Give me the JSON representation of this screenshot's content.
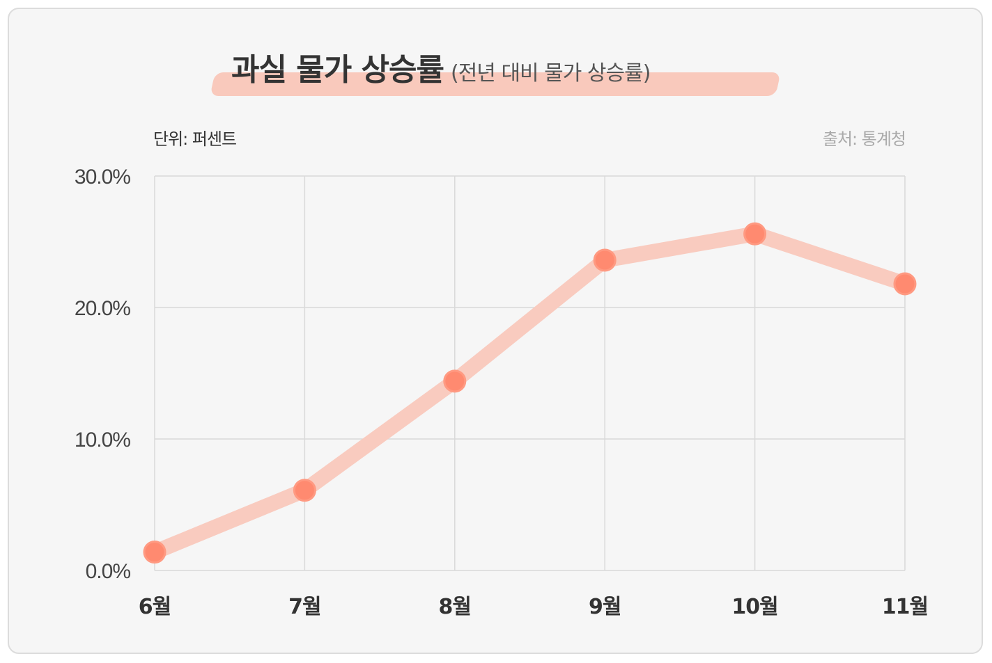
{
  "title": {
    "main": "과실 물가 상승률",
    "sub": "(전년 대비 물가 상승률)"
  },
  "unit_label": "단위: 퍼센트",
  "source_label": "출처: 통계청",
  "colors": {
    "background": "#f6f6f6",
    "line": "#f9cbbf",
    "marker": "#ff8a70",
    "highlight": "#f9c6b8",
    "grid": "#d9d9d9"
  },
  "chart_data": {
    "type": "line",
    "categories": [
      "6월",
      "7월",
      "8월",
      "9월",
      "10월",
      "11월"
    ],
    "series": [
      {
        "values": [
          1.4,
          6.1,
          14.4,
          23.6,
          25.6,
          21.8
        ]
      }
    ],
    "ylim": [
      0,
      30
    ],
    "yticks": [
      "0.0%",
      "10.0%",
      "20.0%",
      "30.0%"
    ],
    "ytick_values": [
      0,
      10,
      20,
      30
    ],
    "grid": true,
    "legend": "none"
  }
}
